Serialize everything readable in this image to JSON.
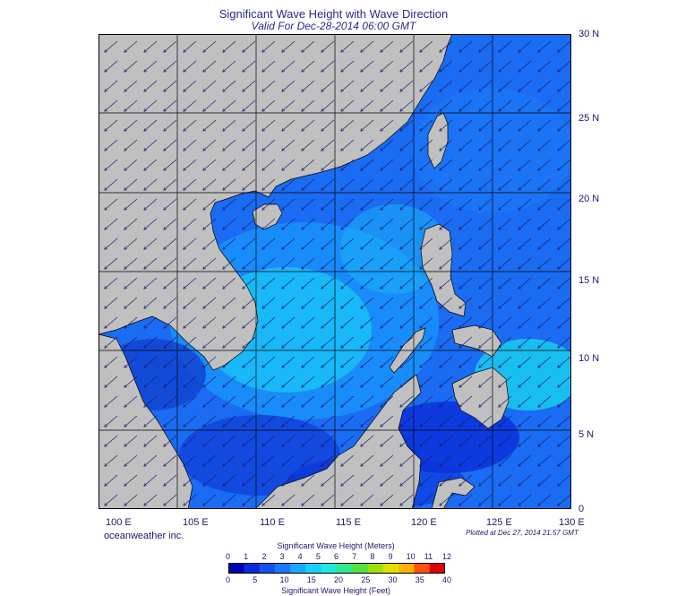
{
  "header": {
    "title": "Significant Wave Height with Wave Direction",
    "subtitle": "Valid For Dec-28-2014 06:00 GMT"
  },
  "map": {
    "lon_range": [
      100,
      130
    ],
    "lat_range": [
      0,
      30
    ],
    "land_color": "#c0c0c0",
    "graticule_color": "#000000",
    "lat_labels": [
      "30 N",
      "25 N",
      "20 N",
      "15 N",
      "10 N",
      "5 N",
      "0"
    ],
    "lon_labels": [
      "100 E",
      "105 E",
      "110 E",
      "115 E",
      "120 E",
      "125 E",
      "130 E"
    ],
    "wave_direction": "arrows pointing toward the southwest"
  },
  "footer": {
    "credit": "oceanweather inc.",
    "plotted": "Plotted at Dec 27, 2014 21:57 GMT"
  },
  "colorbar": {
    "meters_title": "Significant Wave Height (Meters)",
    "feet_title": "Significant Wave Height (Feet)",
    "meters_ticks": [
      "0",
      "1",
      "2",
      "3",
      "4",
      "5",
      "6",
      "7",
      "8",
      "9",
      "10",
      "11",
      "12"
    ],
    "feet_ticks": [
      "0",
      "5",
      "10",
      "15",
      "20",
      "25",
      "30",
      "35",
      "40"
    ],
    "colors": [
      "#0000b0",
      "#0a2adc",
      "#1450f0",
      "#1a78ff",
      "#1aa8ff",
      "#1ad0ff",
      "#20e8e0",
      "#30e890",
      "#50e040",
      "#9ce010",
      "#e0e000",
      "#ffb000",
      "#ff5010",
      "#e00000"
    ]
  }
}
